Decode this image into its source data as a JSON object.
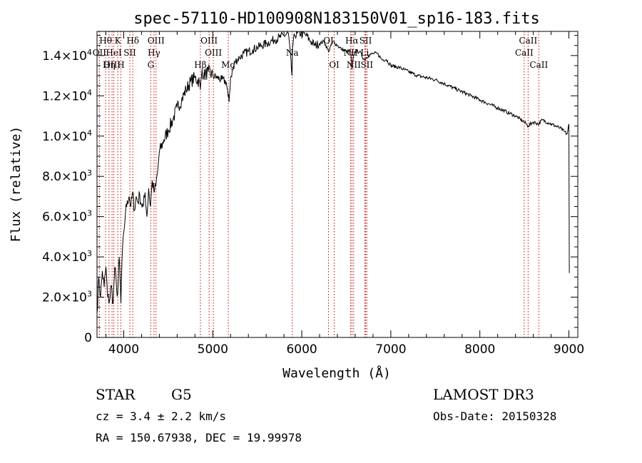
{
  "chart_data": {
    "type": "line",
    "title": "spec-57110-HD100908N183150V01_sp16-183.fits",
    "xlabel": "Wavelength (Å)",
    "ylabel": "Flux (relative)",
    "xlim": [
      3700,
      9100
    ],
    "ylim": [
      0,
      15200
    ],
    "x_ticks": [
      4000,
      5000,
      6000,
      7000,
      8000,
      9000
    ],
    "y_ticks": [
      {
        "value": 0,
        "mantissa": "0",
        "exp": ""
      },
      {
        "value": 2000,
        "mantissa": "2.0×10",
        "exp": "3"
      },
      {
        "value": 4000,
        "mantissa": "4.0×10",
        "exp": "3"
      },
      {
        "value": 6000,
        "mantissa": "6.0×10",
        "exp": "3"
      },
      {
        "value": 8000,
        "mantissa": "8.0×10",
        "exp": "3"
      },
      {
        "value": 10000,
        "mantissa": "1.0×10",
        "exp": "4"
      },
      {
        "value": 12000,
        "mantissa": "1.2×10",
        "exp": "4"
      },
      {
        "value": 14000,
        "mantissa": "1.4×10",
        "exp": "4"
      }
    ],
    "spectrum": {
      "name": "flux",
      "x": [
        3700,
        3720,
        3740,
        3760,
        3780,
        3800,
        3820,
        3840,
        3860,
        3880,
        3900,
        3920,
        3933,
        3950,
        3968,
        3980,
        4000,
        4020,
        4040,
        4060,
        4080,
        4102,
        4120,
        4140,
        4160,
        4180,
        4200,
        4220,
        4240,
        4260,
        4280,
        4300,
        4320,
        4340,
        4360,
        4380,
        4400,
        4450,
        4500,
        4550,
        4600,
        4650,
        4700,
        4750,
        4800,
        4850,
        4861,
        4880,
        4900,
        4950,
        5000,
        5050,
        5100,
        5150,
        5172,
        5183,
        5200,
        5250,
        5300,
        5350,
        5400,
        5450,
        5500,
        5550,
        5600,
        5650,
        5700,
        5750,
        5800,
        5850,
        5890,
        5896,
        5920,
        5950,
        6000,
        6050,
        6100,
        6150,
        6200,
        6250,
        6300,
        6350,
        6400,
        6450,
        6500,
        6550,
        6563,
        6580,
        6600,
        6650,
        6700,
        6750,
        6800,
        6850,
        6900,
        6950,
        7000,
        7100,
        7200,
        7300,
        7400,
        7500,
        7600,
        7700,
        7800,
        7900,
        8000,
        8100,
        8200,
        8300,
        8400,
        8498,
        8542,
        8600,
        8662,
        8700,
        8800,
        8900,
        8980,
        9000,
        9005
      ],
      "y": [
        1200,
        3000,
        2000,
        3300,
        2500,
        3500,
        2000,
        1800,
        2600,
        1700,
        3500,
        2400,
        2200,
        4000,
        1700,
        3700,
        5200,
        6200,
        6800,
        7000,
        6500,
        7200,
        6300,
        7000,
        6700,
        7100,
        6600,
        6500,
        7200,
        6000,
        7400,
        6500,
        7800,
        7200,
        7500,
        8200,
        9200,
        9800,
        10300,
        10800,
        11400,
        11800,
        12300,
        12700,
        12900,
        12700,
        12300,
        13300,
        13000,
        13200,
        13000,
        12900,
        12800,
        12700,
        12000,
        11700,
        12900,
        13700,
        13900,
        14100,
        14200,
        14300,
        14400,
        14500,
        14600,
        14700,
        14800,
        14900,
        15000,
        15100,
        13000,
        14400,
        15000,
        15100,
        15100,
        15000,
        14700,
        14500,
        14600,
        14700,
        14200,
        14700,
        14500,
        14300,
        14200,
        14200,
        13300,
        14000,
        14200,
        14200,
        13800,
        14000,
        14100,
        14100,
        13800,
        13800,
        13500,
        13400,
        13200,
        13000,
        12900,
        12800,
        12600,
        12400,
        12200,
        12000,
        11800,
        11600,
        11400,
        11200,
        11000,
        10700,
        10500,
        10700,
        10600,
        10800,
        10600,
        10400,
        10100,
        10600,
        3200
      ]
    },
    "spectral_lines": [
      {
        "label": "Hθ",
        "x": 3797,
        "row": 0
      },
      {
        "label": "OII",
        "x": 3727,
        "row": 1
      },
      {
        "label": "OIII",
        "x": 3869,
        "row": 2
      },
      {
        "label": "HeI",
        "x": 3889,
        "row": 1
      },
      {
        "label": "Hη",
        "x": 3835,
        "row": 2
      },
      {
        "label": "K",
        "x": 3933,
        "row": 0
      },
      {
        "label": "SII",
        "x": 4069,
        "row": 1
      },
      {
        "label": "H",
        "x": 3968,
        "row": 2
      },
      {
        "label": "Hδ",
        "x": 4102,
        "row": 0
      },
      {
        "label": "OIII",
        "x": 4363,
        "row": 0
      },
      {
        "label": "Hγ",
        "x": 4340,
        "row": 1
      },
      {
        "label": "G",
        "x": 4304,
        "row": 2
      },
      {
        "label": "OIII",
        "x": 4959,
        "row": 0
      },
      {
        "label": "OIII",
        "x": 5007,
        "row": 1
      },
      {
        "label": "Hβ",
        "x": 4861,
        "row": 2
      },
      {
        "label": "Mg",
        "x": 5175,
        "row": 2
      },
      {
        "label": "Na",
        "x": 5893,
        "row": 1
      },
      {
        "label": "OI",
        "x": 6300,
        "row": 0
      },
      {
        "label": "OI",
        "x": 6364,
        "row": 2
      },
      {
        "label": "Hα",
        "x": 6563,
        "row": 0
      },
      {
        "label": "NII",
        "x": 6548,
        "row": 1
      },
      {
        "label": "NII",
        "x": 6583,
        "row": 2
      },
      {
        "label": "SII",
        "x": 6717,
        "row": 0
      },
      {
        "label": "Li",
        "x": 6708,
        "row": 1
      },
      {
        "label": "SII",
        "x": 6731,
        "row": 2
      },
      {
        "label": "CaII",
        "x": 8542,
        "row": 0
      },
      {
        "label": "CaII",
        "x": 8498,
        "row": 1
      },
      {
        "label": "CaII",
        "x": 8662,
        "row": 2
      }
    ]
  },
  "info": {
    "object_class": "STAR",
    "subclass": "G5",
    "survey": "LAMOST DR3",
    "redshift_line": "cz = 3.4 ± 2.2 km/s",
    "obs_date": "Obs-Date: 20150328",
    "coords": "RA = 150.67938, DEC =  19.99978"
  }
}
